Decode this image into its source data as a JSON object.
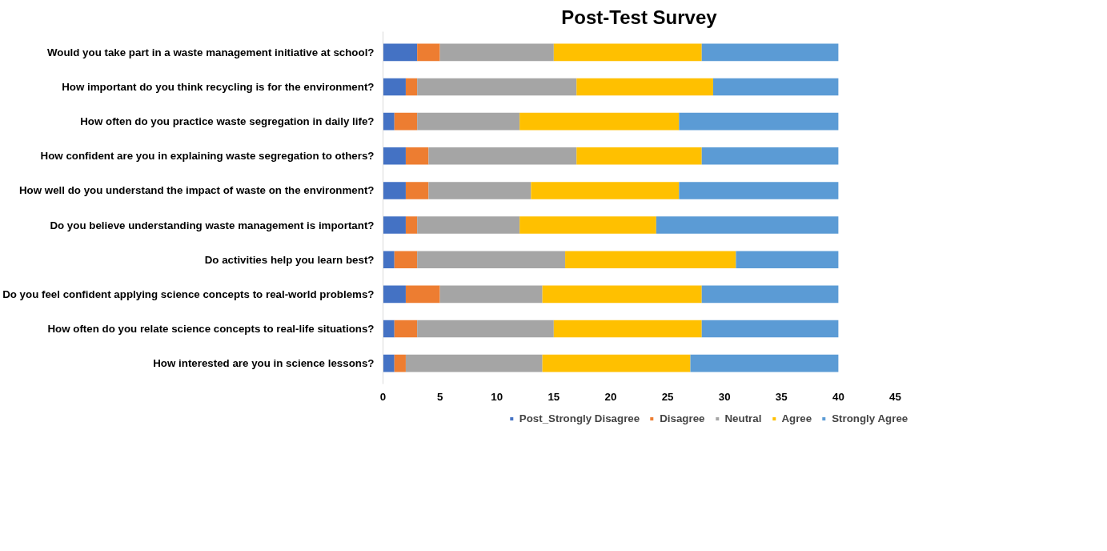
{
  "chart_data": {
    "type": "bar",
    "title": "Post-Test Survey",
    "orientation": "horizontal",
    "stacked": true,
    "categories": [
      "Would you take part in a waste management initiative at school?",
      "How important do you think recycling is for the environment?",
      "How often do you practice waste segregation in daily life?",
      "How confident are you in explaining waste segregation to others?",
      "How well do you understand the impact of waste on the environment?",
      "Do you believe understanding waste management is important?",
      "Do activities help you learn best?",
      "Do you feel confident applying science concepts to real-world problems?",
      "How often do you relate science concepts to real-life situations?",
      "How interested are you in science lessons?"
    ],
    "series": [
      {
        "name": "Post_Strongly Disagree",
        "color": "#4472c4",
        "values": [
          3,
          2,
          1,
          2,
          2,
          2,
          1,
          2,
          1,
          1
        ]
      },
      {
        "name": "Disagree",
        "color": "#ed7d31",
        "values": [
          2,
          1,
          2,
          2,
          2,
          1,
          2,
          3,
          2,
          1
        ]
      },
      {
        "name": "Neutral",
        "color": "#a5a5a5",
        "values": [
          10,
          14,
          9,
          13,
          9,
          9,
          13,
          9,
          12,
          12
        ]
      },
      {
        "name": "Agree",
        "color": "#ffc000",
        "values": [
          13,
          12,
          14,
          11,
          13,
          12,
          15,
          14,
          13,
          13
        ]
      },
      {
        "name": "Strongly Agree",
        "color": "#5b9bd5",
        "values": [
          12,
          11,
          14,
          12,
          14,
          16,
          9,
          12,
          12,
          13
        ]
      }
    ],
    "xlim": [
      0,
      45
    ],
    "xticks": [
      0,
      5,
      10,
      15,
      20,
      25,
      30,
      35,
      40,
      45
    ],
    "grid": false,
    "legend": "bottom"
  }
}
